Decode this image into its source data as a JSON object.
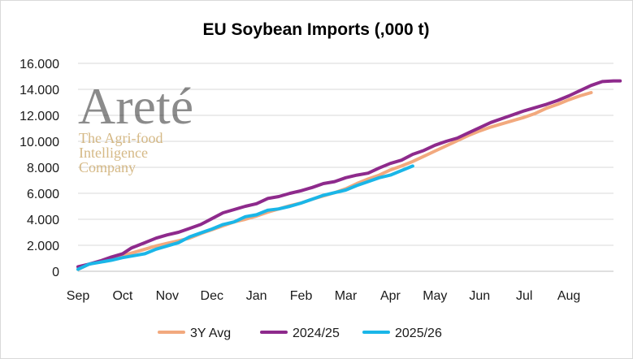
{
  "chart_data": {
    "type": "line",
    "title": "EU Soybean Imports (,000 t)",
    "xlabel": "",
    "ylabel": "",
    "x": [
      "Sep",
      "Oct",
      "Nov",
      "Dec",
      "Jan",
      "Feb",
      "Mar",
      "Apr",
      "May",
      "Jun",
      "Jul",
      "Aug"
    ],
    "x_ticks": [
      "Sep",
      "Oct",
      "Nov",
      "Dec",
      "Jan",
      "Feb",
      "Mar",
      "Apr",
      "May",
      "Jun",
      "Jul",
      "Aug"
    ],
    "y_ticks": [
      "0",
      "2.000",
      "4.000",
      "6.000",
      "8.000",
      "10.000",
      "12.000",
      "14.000",
      "16.000"
    ],
    "ylim": [
      0,
      16000
    ],
    "grid": true,
    "legend_position": "bottom",
    "series": [
      {
        "name": "3Y Avg",
        "color": "#f2a97e",
        "points": [
          [
            0,
            150
          ],
          [
            0.25,
            550
          ],
          [
            0.5,
            750
          ],
          [
            0.75,
            1050
          ],
          [
            1,
            1200
          ],
          [
            1.25,
            1450
          ],
          [
            1.5,
            1700
          ],
          [
            1.75,
            1950
          ],
          [
            2,
            2150
          ],
          [
            2.25,
            2350
          ],
          [
            2.5,
            2550
          ],
          [
            2.75,
            2900
          ],
          [
            3,
            3200
          ],
          [
            3.25,
            3500
          ],
          [
            3.5,
            3800
          ],
          [
            3.75,
            4000
          ],
          [
            4,
            4250
          ],
          [
            4.25,
            4550
          ],
          [
            4.5,
            4800
          ],
          [
            4.75,
            5050
          ],
          [
            5,
            5250
          ],
          [
            5.25,
            5550
          ],
          [
            5.5,
            5800
          ],
          [
            5.75,
            6050
          ],
          [
            6,
            6350
          ],
          [
            6.25,
            6750
          ],
          [
            6.5,
            7100
          ],
          [
            6.75,
            7400
          ],
          [
            7,
            7800
          ],
          [
            7.25,
            8100
          ],
          [
            7.5,
            8450
          ],
          [
            7.75,
            8850
          ],
          [
            8,
            9250
          ],
          [
            8.25,
            9650
          ],
          [
            8.5,
            10050
          ],
          [
            8.75,
            10450
          ],
          [
            9,
            10800
          ],
          [
            9.25,
            11100
          ],
          [
            9.5,
            11350
          ],
          [
            9.75,
            11600
          ],
          [
            10,
            11850
          ],
          [
            10.25,
            12150
          ],
          [
            10.5,
            12550
          ],
          [
            10.75,
            12850
          ],
          [
            11,
            13200
          ],
          [
            11.25,
            13500
          ],
          [
            11.5,
            13750
          ]
        ]
      },
      {
        "name": "2024/25",
        "color": "#8e2a8c",
        "points": [
          [
            0,
            350
          ],
          [
            0.25,
            550
          ],
          [
            0.5,
            800
          ],
          [
            0.75,
            1100
          ],
          [
            1,
            1350
          ],
          [
            1.2,
            1800
          ],
          [
            1.5,
            2200
          ],
          [
            1.75,
            2550
          ],
          [
            2,
            2800
          ],
          [
            2.25,
            3000
          ],
          [
            2.5,
            3300
          ],
          [
            2.75,
            3600
          ],
          [
            3,
            4050
          ],
          [
            3.25,
            4500
          ],
          [
            3.5,
            4750
          ],
          [
            3.75,
            5000
          ],
          [
            4,
            5200
          ],
          [
            4.25,
            5600
          ],
          [
            4.5,
            5750
          ],
          [
            4.75,
            6000
          ],
          [
            5,
            6200
          ],
          [
            5.25,
            6450
          ],
          [
            5.5,
            6750
          ],
          [
            5.75,
            6900
          ],
          [
            6,
            7200
          ],
          [
            6.25,
            7400
          ],
          [
            6.5,
            7550
          ],
          [
            6.75,
            7950
          ],
          [
            7,
            8300
          ],
          [
            7.25,
            8550
          ],
          [
            7.5,
            9000
          ],
          [
            7.75,
            9300
          ],
          [
            8,
            9700
          ],
          [
            8.25,
            10000
          ],
          [
            8.5,
            10250
          ],
          [
            8.75,
            10650
          ],
          [
            9,
            11050
          ],
          [
            9.25,
            11450
          ],
          [
            9.5,
            11750
          ],
          [
            9.75,
            12050
          ],
          [
            10,
            12350
          ],
          [
            10.25,
            12600
          ],
          [
            10.5,
            12850
          ],
          [
            10.75,
            13150
          ],
          [
            11,
            13500
          ],
          [
            11.25,
            13900
          ],
          [
            11.5,
            14300
          ],
          [
            11.75,
            14600
          ],
          [
            12,
            14650
          ],
          [
            12.15,
            14650
          ]
        ]
      },
      {
        "name": "2025/26",
        "color": "#1ab6e8",
        "points": [
          [
            0,
            150
          ],
          [
            0.25,
            550
          ],
          [
            0.5,
            700
          ],
          [
            0.75,
            850
          ],
          [
            1,
            1050
          ],
          [
            1.25,
            1200
          ],
          [
            1.5,
            1350
          ],
          [
            1.75,
            1700
          ],
          [
            2,
            1950
          ],
          [
            2.25,
            2200
          ],
          [
            2.5,
            2650
          ],
          [
            2.75,
            2950
          ],
          [
            3,
            3250
          ],
          [
            3.25,
            3600
          ],
          [
            3.5,
            3800
          ],
          [
            3.75,
            4200
          ],
          [
            4,
            4350
          ],
          [
            4.25,
            4700
          ],
          [
            4.5,
            4800
          ],
          [
            4.75,
            5000
          ],
          [
            5,
            5250
          ],
          [
            5.25,
            5550
          ],
          [
            5.5,
            5850
          ],
          [
            5.75,
            6050
          ],
          [
            6,
            6250
          ],
          [
            6.25,
            6600
          ],
          [
            6.5,
            6900
          ],
          [
            6.75,
            7200
          ],
          [
            7,
            7400
          ],
          [
            7.25,
            7750
          ],
          [
            7.5,
            8100
          ]
        ]
      }
    ]
  },
  "watermark": {
    "brand": "Areté",
    "tagline": [
      "The Agri-food",
      "Intelligence",
      "Company"
    ]
  }
}
